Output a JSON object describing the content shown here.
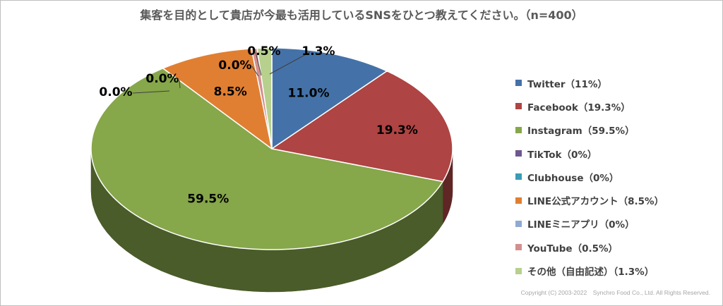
{
  "chart_data": {
    "type": "pie",
    "title": "集客を目的として貴店が今最も活用しているSNSをひとつ教えてください。（n=400）",
    "slices": [
      {
        "name": "Twitter",
        "value": 11.0,
        "label": "11.0%",
        "legend": "Twitter（11%）",
        "color": "#4472a8"
      },
      {
        "name": "Facebook",
        "value": 19.3,
        "label": "19.3%",
        "legend": "Facebook（19.3%）",
        "color": "#ae4443"
      },
      {
        "name": "Instagram",
        "value": 59.5,
        "label": "59.5%",
        "legend": "Instagram（59.5%）",
        "color": "#86a74a"
      },
      {
        "name": "TikTok",
        "value": 0.0,
        "label": "0.0%",
        "legend": "TikTok（0%）",
        "color": "#6f5790"
      },
      {
        "name": "Clubhouse",
        "value": 0.0,
        "label": "0.0%",
        "legend": "Clubhouse（0%）",
        "color": "#3b9cb5"
      },
      {
        "name": "LINE公式アカウント",
        "value": 8.5,
        "label": "8.5%",
        "legend": "LINE公式アカウント（8.5%）",
        "color": "#e07f32"
      },
      {
        "name": "LINEミニアプリ",
        "value": 0.0,
        "label": "0.0%",
        "legend": "LINEミニアプリ（0%）",
        "color": "#8faad2"
      },
      {
        "name": "YouTube",
        "value": 0.5,
        "label": "0.5%",
        "legend": "YouTube（0.5%）",
        "color": "#d38f8e"
      },
      {
        "name": "その他（自由記述）",
        "value": 1.3,
        "label": "1.3%",
        "legend": "その他（自由記述）（1.3%）",
        "color": "#b7d08e"
      }
    ]
  },
  "copyright": "Copyright (C) 2003-2022　Synchro Food Co., Ltd. All Rights Reserved."
}
